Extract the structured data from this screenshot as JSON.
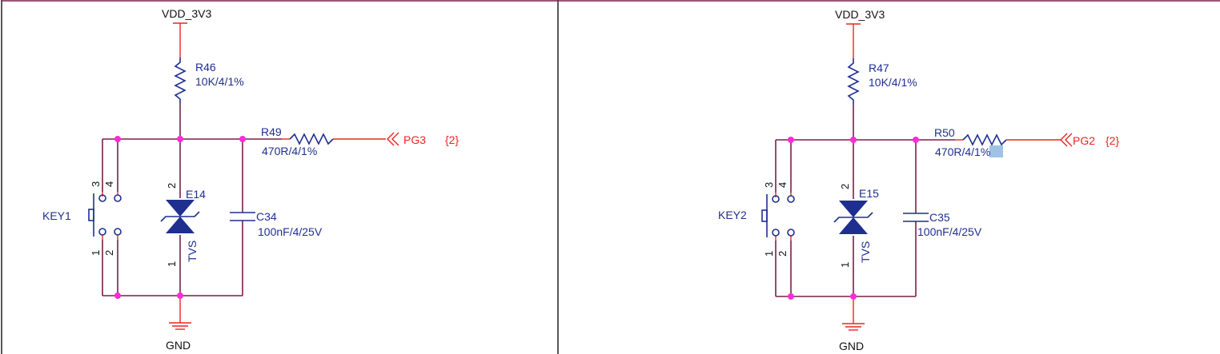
{
  "circuits": [
    {
      "id": "left",
      "supply": "VDD_3V3",
      "ground": "GND",
      "pullup": {
        "ref": "R46",
        "value": "10K/4/1%"
      },
      "series": {
        "ref": "R49",
        "value": "470R/4/1%"
      },
      "port": {
        "name": "PG3",
        "ref": "{2}"
      },
      "key": {
        "ref": "KEY1",
        "pins": [
          "3",
          "4",
          "1",
          "2"
        ]
      },
      "tvs": {
        "ref": "E14",
        "type": "TVS",
        "pin_top": "2",
        "pin_bottom": "1"
      },
      "cap": {
        "ref": "C34",
        "value": "100nF/4/25V"
      }
    },
    {
      "id": "right",
      "supply": "VDD_3V3",
      "ground": "GND",
      "pullup": {
        "ref": "R47",
        "value": "10K/4/1%"
      },
      "series": {
        "ref": "R50",
        "value": "470R/4/1%"
      },
      "port": {
        "name": "PG2",
        "ref": "{2}"
      },
      "key": {
        "ref": "KEY2",
        "pins": [
          "3",
          "4",
          "1",
          "2"
        ]
      },
      "tvs": {
        "ref": "E15",
        "type": "TVS",
        "pin_top": "2",
        "pin_bottom": "1"
      },
      "cap": {
        "ref": "C35",
        "value": "100nF/4/25V"
      }
    }
  ],
  "colors": {
    "wire": "#7a1f4a",
    "component": "#1f2f8f",
    "net_port": "#e8261f",
    "junction": "#ff2bd6",
    "selection_highlight": "#9ec3e6"
  }
}
